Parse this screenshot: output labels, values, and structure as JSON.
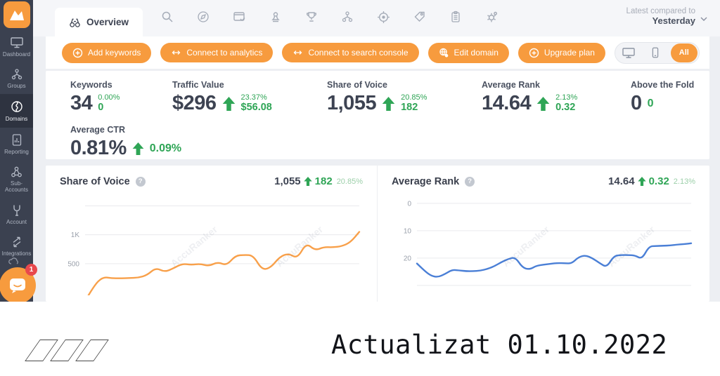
{
  "app": {
    "compare_label": "Latest compared to",
    "compare_value": "Yesterday"
  },
  "sidebar": {
    "items": [
      {
        "label": "Dashboard"
      },
      {
        "label": "Groups"
      },
      {
        "label": "Domains",
        "active": true
      },
      {
        "label": "Reporting"
      },
      {
        "label": "Sub- Accounts"
      },
      {
        "label": "Account"
      },
      {
        "label": "Integrations"
      }
    ],
    "chat_badge": "1"
  },
  "tabs": {
    "overview_label": "Overview"
  },
  "actions": {
    "add_keywords": "Add keywords",
    "connect_analytics": "Connect to analytics",
    "connect_search_console": "Connect to search console",
    "edit_domain": "Edit domain",
    "upgrade_plan": "Upgrade plan",
    "device_all": "All"
  },
  "stats": [
    {
      "label": "Keywords",
      "value": "34",
      "pct": "0.00%",
      "delta": "0"
    },
    {
      "label": "Traffic Value",
      "value": "$296",
      "pct": "23.37%",
      "delta": "$56.08"
    },
    {
      "label": "Share of Voice",
      "value": "1,055",
      "pct": "20.85%",
      "delta": "182"
    },
    {
      "label": "Average Rank",
      "value": "14.64",
      "pct": "2.13%",
      "delta": "0.32"
    },
    {
      "label": "Above the Fold",
      "value": "0",
      "pct": "",
      "delta": "0"
    },
    {
      "label": "Average CTR",
      "value": "0.81%",
      "pct": "",
      "delta": "0.09%"
    }
  ],
  "charts": [
    {
      "title": "Share of Voice",
      "value": "1,055",
      "delta": "182",
      "pct": "20.85%"
    },
    {
      "title": "Average Rank",
      "value": "14.64",
      "delta": "0.32",
      "pct": "2.13%"
    }
  ],
  "watermark": "AccuRanker",
  "footer": {
    "text": "Actualizat 01.10.2022"
  },
  "colors": {
    "accent": "#f79b3e",
    "green": "#2fa556",
    "sov_line": "#f8a04a",
    "rank_line": "#4a7fd6",
    "sidebar": "#3b4150"
  },
  "chart_data": [
    {
      "type": "line",
      "title": "Share of Voice",
      "legend": "none",
      "grid": true,
      "ylim": [
        0,
        1700
      ],
      "invert": false,
      "color": "#f8a04a",
      "yticks": [
        {
          "v": 1500,
          "label": ""
        },
        {
          "v": 1000,
          "label": "1K"
        },
        {
          "v": 500,
          "label": "500"
        }
      ],
      "series": [
        {
          "name": "Share of Voice",
          "values": [
            -150,
            120,
            270,
            248,
            245,
            252,
            256,
            300,
            430,
            355,
            420,
            500,
            478,
            497,
            458,
            528,
            468,
            640,
            650,
            645,
            390,
            432,
            618,
            678,
            588,
            858,
            728,
            788,
            782,
            800,
            868,
            1050
          ]
        }
      ],
      "current": 1055,
      "change": 182,
      "change_pct": "20.85%"
    },
    {
      "type": "line",
      "title": "Average Rank",
      "legend": "none",
      "grid": true,
      "ylim": [
        -3.3,
        32.6
      ],
      "invert": true,
      "color": "#4a7fd6",
      "yticks": [
        {
          "v": 0,
          "label": "0"
        },
        {
          "v": 10,
          "label": "10"
        },
        {
          "v": 20,
          "label": "20"
        },
        {
          "v": 30,
          "label": ""
        }
      ],
      "series": [
        {
          "name": "Average Rank",
          "values": [
            22.0,
            24.5,
            26.5,
            27.0,
            25.8,
            24.3,
            24.5,
            24.8,
            24.8,
            24.6,
            24.0,
            23.0,
            21.5,
            20.3,
            19.7,
            23.5,
            24.2,
            22.8,
            22.4,
            22.1,
            21.8,
            21.9,
            22.0,
            19.6,
            19.0,
            20.1,
            21.9,
            23.4,
            19.2,
            18.9,
            18.9,
            19.0,
            20.4,
            15.7,
            15.6,
            15.5,
            15.4,
            15.1,
            14.9,
            14.6
          ]
        }
      ],
      "current": 14.64,
      "change": 0.32,
      "change_pct": "2.13%"
    }
  ]
}
